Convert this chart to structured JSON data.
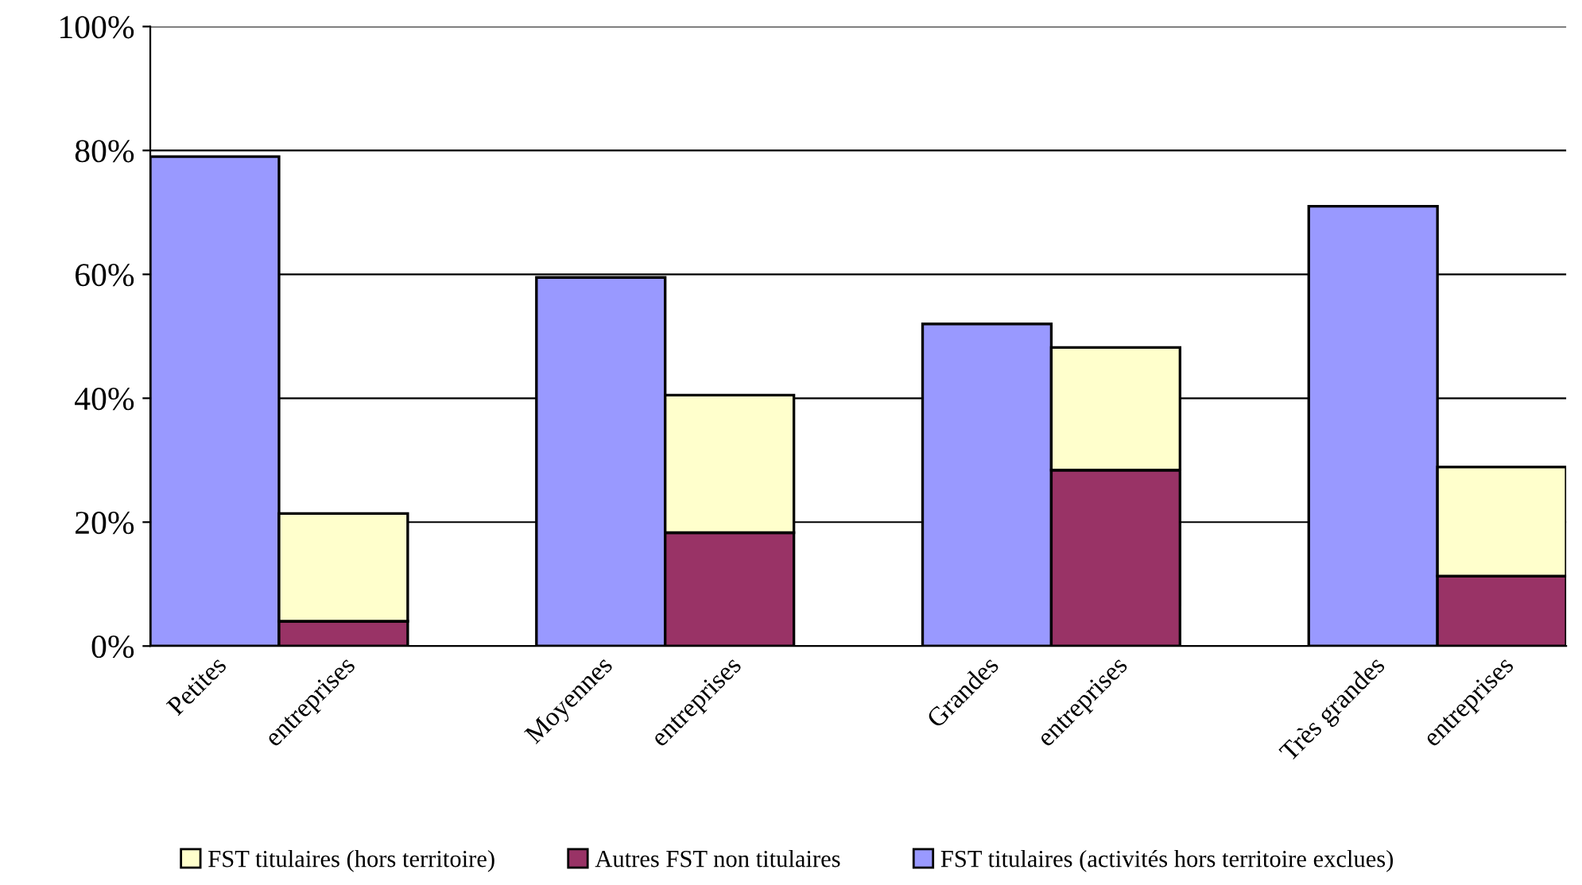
{
  "chart_data": {
    "type": "bar",
    "stacked": true,
    "categories": [
      "Petites",
      "entreprises",
      null,
      "Moyennes",
      "entreprises",
      null,
      "Grandes",
      "entreprises",
      null,
      "Très grandes",
      "entreprises"
    ],
    "series": [
      {
        "name": "FST titulaires (activités hors territoire exclues)",
        "color": "#9999ff",
        "values": [
          79,
          null,
          null,
          59.5,
          null,
          null,
          52,
          null,
          null,
          71,
          null
        ]
      },
      {
        "name": "Autres FST non titulaires",
        "color": "#993366",
        "values": [
          null,
          4,
          null,
          null,
          18.3,
          null,
          null,
          28.4,
          null,
          null,
          11.3
        ]
      },
      {
        "name": "FST titulaires (hors territoire)",
        "color": "#ffffcc",
        "values": [
          null,
          17.4,
          null,
          null,
          22.2,
          null,
          null,
          19.8,
          null,
          null,
          17.6
        ]
      }
    ],
    "ylim": [
      0,
      100
    ],
    "yticks": [
      {
        "value": 0,
        "label": "0%"
      },
      {
        "value": 20,
        "label": "20%"
      },
      {
        "value": 40,
        "label": "40%"
      },
      {
        "value": 60,
        "label": "60%"
      },
      {
        "value": 80,
        "label": "80%"
      },
      {
        "value": 100,
        "label": "100%"
      }
    ],
    "grid": "y",
    "legend": "bottom"
  }
}
